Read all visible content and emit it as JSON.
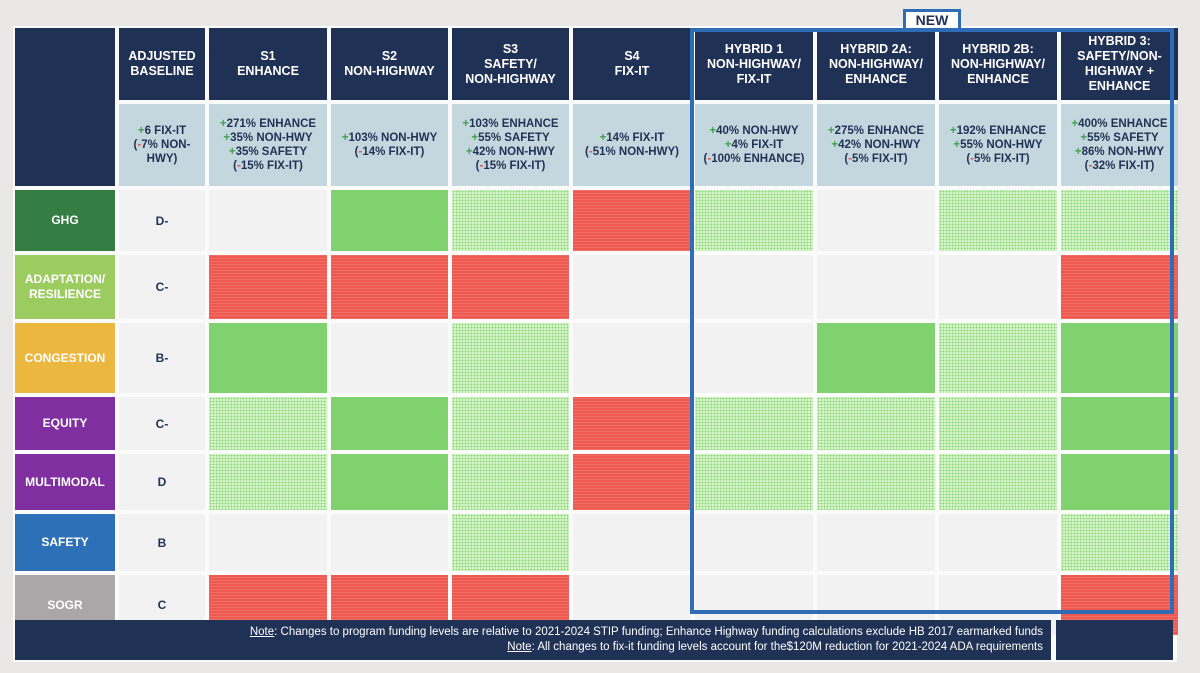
{
  "badge": "NEW",
  "columns": [
    {
      "label_lines": [
        "ADJUSTED",
        "BASELINE"
      ],
      "changes": [
        {
          "sign": "+",
          "text": "6 FIX-IT"
        },
        {
          "sign": "(-",
          "text": "7% NON-"
        },
        {
          "sign": "",
          "text": "HWY)"
        }
      ]
    },
    {
      "label_lines": [
        "S1",
        "ENHANCE"
      ],
      "changes": [
        {
          "sign": "+",
          "text": "271% ENHANCE"
        },
        {
          "sign": "+",
          "text": "35% NON-HWY"
        },
        {
          "sign": "+",
          "text": "35% SAFETY"
        },
        {
          "sign": "(-",
          "text": "15% FIX-IT)"
        }
      ]
    },
    {
      "label_lines": [
        "S2",
        "NON-HIGHWAY"
      ],
      "changes": [
        {
          "sign": "+",
          "text": "103% NON-HWY"
        },
        {
          "sign": "(-",
          "text": "14% FIX-IT)"
        }
      ]
    },
    {
      "label_lines": [
        "S3",
        "SAFETY/",
        "NON-HIGHWAY"
      ],
      "changes": [
        {
          "sign": "+",
          "text": "103% ENHANCE"
        },
        {
          "sign": "+",
          "text": "55% SAFETY"
        },
        {
          "sign": "+",
          "text": "42% NON-HWY"
        },
        {
          "sign": "(-",
          "text": "15% FIX-IT)"
        }
      ]
    },
    {
      "label_lines": [
        "S4",
        "FIX-IT"
      ],
      "changes": [
        {
          "sign": "+",
          "text": "14% FIX-IT"
        },
        {
          "sign": "(-",
          "text": "51% NON-HWY)"
        }
      ]
    },
    {
      "label_lines": [
        "HYBRID 1",
        "NON-HIGHWAY/",
        "FIX-IT"
      ],
      "changes": [
        {
          "sign": "+",
          "text": "40% NON-HWY"
        },
        {
          "sign": "+",
          "text": "4% FIX-IT"
        },
        {
          "sign": "(-",
          "text": "100% ENHANCE)"
        }
      ]
    },
    {
      "label_lines": [
        "HYBRID 2A:",
        "NON-HIGHWAY/",
        "ENHANCE"
      ],
      "changes": [
        {
          "sign": "+",
          "text": "275% ENHANCE"
        },
        {
          "sign": "+",
          "text": "42% NON-HWY"
        },
        {
          "sign": "(-",
          "text": "5% FIX-IT)"
        }
      ]
    },
    {
      "label_lines": [
        "HYBRID 2B:",
        "NON-HIGHWAY/",
        "ENHANCE"
      ],
      "changes": [
        {
          "sign": "+",
          "text": "192% ENHANCE"
        },
        {
          "sign": "+",
          "text": "55% NON-HWY"
        },
        {
          "sign": "(-",
          "text": "5% FIX-IT)"
        }
      ]
    },
    {
      "label_lines": [
        "HYBRID 3:",
        "SAFETY/NON-",
        "HIGHWAY +",
        "ENHANCE"
      ],
      "changes": [
        {
          "sign": "+",
          "text": "400% ENHANCE"
        },
        {
          "sign": "+",
          "text": "55% SAFETY"
        },
        {
          "sign": "+",
          "text": "86% NON-HWY"
        },
        {
          "sign": "(-",
          "text": "32% FIX-IT)"
        }
      ]
    }
  ],
  "rows": [
    {
      "label_lines": [
        "GHG"
      ],
      "color": "#357e43",
      "grade": "D-",
      "ratings": [
        "none",
        "strong",
        "moderate",
        "negative",
        "moderate",
        "none",
        "moderate",
        "moderate"
      ]
    },
    {
      "label_lines": [
        "ADAPTATION/",
        "RESILIENCE"
      ],
      "color": "#9ccb60",
      "grade": "C-",
      "ratings": [
        "negative",
        "negative",
        "negative",
        "none",
        "none",
        "none",
        "none",
        "negative"
      ]
    },
    {
      "label_lines": [
        "CONGESTION"
      ],
      "color": "#ebb73f",
      "grade": "B-",
      "ratings": [
        "strong",
        "none",
        "moderate",
        "none",
        "none",
        "strong",
        "moderate",
        "strong"
      ]
    },
    {
      "label_lines": [
        "EQUITY"
      ],
      "color": "#7f2fa0",
      "grade": "C-",
      "ratings": [
        "moderate",
        "strong",
        "moderate",
        "negative",
        "moderate",
        "moderate",
        "moderate",
        "strong"
      ]
    },
    {
      "label_lines": [
        "MULTIMODAL"
      ],
      "color": "#7f2fa0",
      "grade": "D",
      "ratings": [
        "moderate",
        "strong",
        "moderate",
        "negative",
        "moderate",
        "moderate",
        "moderate",
        "strong"
      ]
    },
    {
      "label_lines": [
        "SAFETY"
      ],
      "color": "#2e70b8",
      "grade": "B",
      "ratings": [
        "none",
        "none",
        "moderate",
        "none",
        "none",
        "none",
        "none",
        "moderate"
      ]
    },
    {
      "label_lines": [
        "SOGR"
      ],
      "color": "#a9a7a7",
      "grade": "C",
      "ratings": [
        "negative",
        "negative",
        "negative",
        "none",
        "none",
        "none",
        "none",
        "negative"
      ]
    }
  ],
  "footer": {
    "notes": [
      {
        "label": "Note",
        "text": ": Changes to program funding levels are relative to 2021-2024 STIP funding; Enhance Highway funding calculations exclude HB 2017 earmarked funds"
      },
      {
        "label": "Note",
        "text": ": All changes to fix-it funding levels account for the$120M reduction for 2021-2024 ADA requirements"
      }
    ]
  },
  "legend_semantics": {
    "strong": "strong positive",
    "moderate": "moderate positive",
    "negative": "negative",
    "none": "no change"
  }
}
